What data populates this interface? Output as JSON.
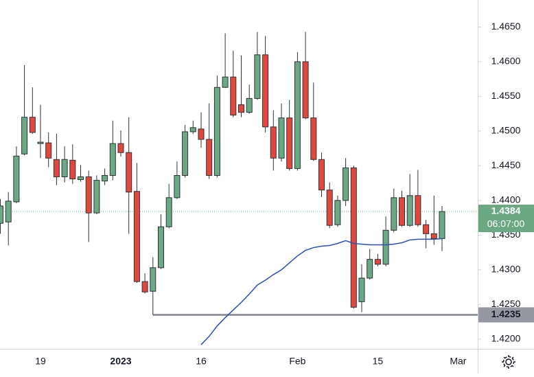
{
  "chart_data": {
    "type": "candlestick",
    "categories": [
      null,
      null,
      null,
      null,
      null,
      "19",
      null,
      null,
      null,
      null,
      null,
      null,
      null,
      null,
      null,
      "2023",
      null,
      null,
      null,
      null,
      null,
      null,
      null,
      null,
      null,
      "16",
      null,
      null,
      null,
      null,
      null,
      null,
      null,
      null,
      null,
      null,
      null,
      "Feb",
      null,
      null,
      null,
      null,
      null,
      null,
      null,
      null,
      null,
      "15",
      null,
      null,
      null,
      null,
      null,
      null,
      null,
      null,
      null,
      "Mar"
    ],
    "open": [
      1.4367,
      1.4369,
      1.4398,
      1.4467,
      1.452,
      1.4482,
      1.4483,
      1.4459,
      1.4434,
      1.4458,
      1.443,
      1.4434,
      1.4382,
      1.4428,
      1.4436,
      1.4482,
      1.4469,
      1.4413,
      1.4283,
      1.4269,
      1.4303,
      1.4362,
      1.4404,
      1.4436,
      1.4499,
      1.4503,
      1.4488,
      1.4436,
      1.4563,
      1.4578,
      1.4538,
      1.4527,
      1.4547,
      1.461,
      1.4506,
      1.4461,
      1.4519,
      1.4446,
      1.46,
      1.4519,
      1.4459,
      1.4415,
      1.4365,
      1.44,
      1.4447,
      1.4254,
      1.4288,
      1.4315,
      1.4308,
      1.4357,
      1.4404,
      1.4364,
      1.4407,
      1.4365,
      1.4352,
      1.4345,
      null,
      null
    ],
    "high": [
      1.4402,
      1.4412,
      1.4478,
      1.4595,
      1.4563,
      1.4538,
      1.4498,
      1.4496,
      1.4478,
      1.4481,
      1.4451,
      1.4443,
      1.4436,
      1.4446,
      1.4515,
      1.4501,
      1.452,
      1.4454,
      1.4295,
      1.4318,
      1.438,
      1.4424,
      1.4456,
      1.4509,
      1.4515,
      1.4527,
      1.454,
      1.458,
      1.4641,
      1.4616,
      1.4609,
      1.4567,
      1.4643,
      1.4637,
      1.453,
      1.454,
      1.4545,
      1.4614,
      1.4643,
      1.457,
      1.4469,
      1.4426,
      1.4407,
      1.4461,
      1.445,
      1.4308,
      1.433,
      1.4323,
      1.4377,
      1.4417,
      1.4414,
      1.4438,
      1.4444,
      1.4372,
      1.4407,
      1.4392,
      null,
      null
    ],
    "low": [
      1.4352,
      1.4335,
      1.4396,
      1.4465,
      1.4496,
      1.4461,
      1.4448,
      1.4422,
      1.4426,
      1.4424,
      1.4427,
      1.434,
      1.438,
      1.4422,
      1.4429,
      1.4463,
      1.4352,
      1.4281,
      1.4266,
      1.4235,
      1.4301,
      1.436,
      1.4402,
      1.4433,
      1.4496,
      1.4476,
      1.4431,
      1.4433,
      1.4562,
      1.452,
      1.452,
      1.4525,
      1.4545,
      1.4498,
      1.4443,
      1.4456,
      1.4443,
      1.4443,
      1.4517,
      1.4457,
      1.4405,
      1.436,
      1.4362,
      1.4392,
      1.4244,
      1.4239,
      1.4286,
      1.4305,
      1.4305,
      1.4354,
      1.4362,
      1.4362,
      1.4362,
      1.4331,
      1.4336,
      1.4327,
      null,
      null
    ],
    "close": [
      1.4392,
      1.4399,
      1.4464,
      1.452,
      1.4498,
      1.4484,
      1.4461,
      1.4434,
      1.4459,
      1.4431,
      1.4434,
      1.4382,
      1.4429,
      1.4436,
      1.4482,
      1.4469,
      1.4412,
      1.4283,
      1.4268,
      1.4303,
      1.4362,
      1.4404,
      1.4436,
      1.4499,
      1.4505,
      1.4488,
      1.4436,
      1.4563,
      1.4578,
      1.4523,
      1.4527,
      1.4547,
      1.461,
      1.4506,
      1.4461,
      1.4519,
      1.4446,
      1.46,
      1.4519,
      1.4459,
      1.4415,
      1.4364,
      1.44,
      1.4447,
      1.4246,
      1.4288,
      1.4315,
      1.4308,
      1.4357,
      1.4404,
      1.4364,
      1.4407,
      1.4365,
      1.4352,
      1.4345,
      1.4384,
      null,
      null
    ],
    "up_color": "#6aa984",
    "down_color": "#e1483d",
    "moving_average": {
      "color": "#2a4fb5",
      "values": [
        null,
        null,
        null,
        null,
        null,
        null,
        null,
        null,
        null,
        null,
        null,
        null,
        null,
        null,
        null,
        null,
        null,
        null,
        null,
        null,
        null,
        null,
        null,
        null,
        null,
        1.4192,
        1.4204,
        1.4219,
        1.4231,
        1.4242,
        1.4253,
        1.4265,
        1.4278,
        1.4285,
        1.4293,
        1.43,
        1.431,
        1.432,
        1.4328,
        1.4332,
        1.4334,
        1.4335,
        1.4338,
        1.4342,
        1.4338,
        1.4337,
        1.4336,
        1.4336,
        1.4336,
        1.4337,
        1.4339,
        1.4343,
        1.4344,
        1.4344,
        1.4344,
        1.4345,
        null,
        null
      ]
    },
    "level": {
      "value": 1.4235,
      "label": "1.4235",
      "color": "#9598a1"
    },
    "last_price": {
      "value": 1.4384,
      "label": "1.4384",
      "countdown": "06:07:00",
      "color": "#6aa984"
    },
    "ylim": [
      1.4186,
      1.4689
    ],
    "yticks": [
      {
        "value": 1.42,
        "label": "1.4200"
      },
      {
        "value": 1.425,
        "label": "1.4250"
      },
      {
        "value": 1.43,
        "label": "1.4300"
      },
      {
        "value": 1.435,
        "label": "1.4350"
      },
      {
        "value": 1.44,
        "label": "1.4400"
      },
      {
        "value": 1.445,
        "label": "1.4450"
      },
      {
        "value": 1.45,
        "label": "1.4500"
      },
      {
        "value": 1.455,
        "label": "1.4550"
      },
      {
        "value": 1.46,
        "label": "1.4600"
      },
      {
        "value": 1.465,
        "label": "1.4650"
      }
    ]
  }
}
